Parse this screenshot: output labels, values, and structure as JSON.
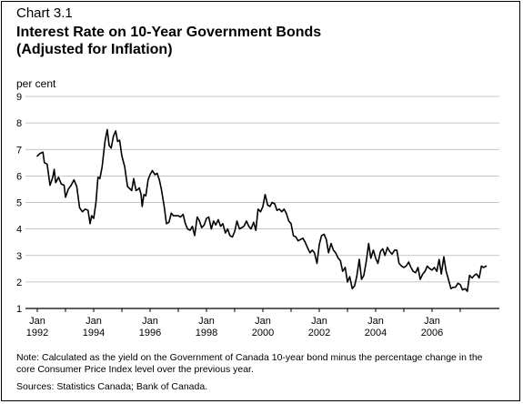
{
  "header": {
    "chart_number": "Chart 3.1",
    "title_line1": "Interest Rate on 10-Year Government Bonds",
    "title_line2": "(Adjusted for Inflation)"
  },
  "unit_label": "per cent",
  "footer": {
    "note": "Note: Calculated as the yield on the Government of Canada 10-year bond minus the percentage change in the core Consumer Price Index level over the previous year.",
    "sources": "Sources: Statistics Canada; Bank of Canada."
  },
  "chart_data": {
    "type": "line",
    "title": "Interest Rate on 10-Year Government Bonds (Adjusted for Inflation)",
    "ylabel": "per cent",
    "ylim": [
      1,
      9
    ],
    "yticks": [
      "1",
      "2",
      "3",
      "4",
      "5",
      "6",
      "7",
      "8",
      "9"
    ],
    "xlim": [
      1992.0,
      2008.0
    ],
    "xticks": [
      {
        "x": 1992,
        "line1": "Jan",
        "line2": "1992"
      },
      {
        "x": 1993,
        "line1": "",
        "line2": ""
      },
      {
        "x": 1994,
        "line1": "Jan",
        "line2": "1994"
      },
      {
        "x": 1995,
        "line1": "",
        "line2": ""
      },
      {
        "x": 1996,
        "line1": "Jan",
        "line2": "1996"
      },
      {
        "x": 1997,
        "line1": "",
        "line2": ""
      },
      {
        "x": 1998,
        "line1": "Jan",
        "line2": "1998"
      },
      {
        "x": 1999,
        "line1": "",
        "line2": ""
      },
      {
        "x": 2000,
        "line1": "Jan",
        "line2": "2000"
      },
      {
        "x": 2001,
        "line1": "",
        "line2": ""
      },
      {
        "x": 2002,
        "line1": "Jan",
        "line2": "2002"
      },
      {
        "x": 2003,
        "line1": "",
        "line2": ""
      },
      {
        "x": 2004,
        "line1": "Jan",
        "line2": "2004"
      },
      {
        "x": 2005,
        "line1": "",
        "line2": ""
      },
      {
        "x": 2006,
        "line1": "Jan",
        "line2": "2006"
      },
      {
        "x": 2007,
        "line1": "",
        "line2": ""
      }
    ],
    "grid": true,
    "series": [
      {
        "color": "#000000",
        "points": [
          [
            1992.0,
            6.75
          ],
          [
            1992.1,
            6.85
          ],
          [
            1992.2,
            6.9
          ],
          [
            1992.25,
            6.5
          ],
          [
            1992.35,
            6.45
          ],
          [
            1992.45,
            5.65
          ],
          [
            1992.55,
            5.95
          ],
          [
            1992.6,
            6.25
          ],
          [
            1992.65,
            5.75
          ],
          [
            1992.75,
            5.95
          ],
          [
            1992.85,
            5.7
          ],
          [
            1992.95,
            5.65
          ],
          [
            1993.0,
            5.2
          ],
          [
            1993.1,
            5.5
          ],
          [
            1993.2,
            5.65
          ],
          [
            1993.3,
            5.85
          ],
          [
            1993.4,
            5.6
          ],
          [
            1993.5,
            4.8
          ],
          [
            1993.6,
            4.65
          ],
          [
            1993.7,
            4.75
          ],
          [
            1993.8,
            4.7
          ],
          [
            1993.87,
            4.2
          ],
          [
            1993.93,
            4.5
          ],
          [
            1994.0,
            4.4
          ],
          [
            1994.08,
            5.0
          ],
          [
            1994.15,
            5.95
          ],
          [
            1994.22,
            5.9
          ],
          [
            1994.3,
            6.35
          ],
          [
            1994.4,
            7.3
          ],
          [
            1994.48,
            7.75
          ],
          [
            1994.55,
            7.15
          ],
          [
            1994.62,
            7.05
          ],
          [
            1994.7,
            7.5
          ],
          [
            1994.78,
            7.7
          ],
          [
            1994.85,
            7.3
          ],
          [
            1994.92,
            7.35
          ],
          [
            1995.0,
            6.75
          ],
          [
            1995.1,
            6.35
          ],
          [
            1995.2,
            5.6
          ],
          [
            1995.3,
            5.5
          ],
          [
            1995.35,
            5.45
          ],
          [
            1995.42,
            5.9
          ],
          [
            1995.5,
            5.45
          ],
          [
            1995.58,
            5.5
          ],
          [
            1995.62,
            5.55
          ],
          [
            1995.68,
            5.3
          ],
          [
            1995.72,
            4.85
          ],
          [
            1995.78,
            5.3
          ],
          [
            1995.85,
            5.25
          ],
          [
            1995.93,
            5.85
          ],
          [
            1996.0,
            6.05
          ],
          [
            1996.08,
            6.2
          ],
          [
            1996.17,
            6.05
          ],
          [
            1996.25,
            6.1
          ],
          [
            1996.33,
            5.85
          ],
          [
            1996.4,
            5.5
          ],
          [
            1996.5,
            4.85
          ],
          [
            1996.58,
            4.2
          ],
          [
            1996.67,
            4.25
          ],
          [
            1996.75,
            4.6
          ],
          [
            1996.83,
            4.5
          ],
          [
            1996.92,
            4.5
          ],
          [
            1997.0,
            4.5
          ],
          [
            1997.08,
            4.45
          ],
          [
            1997.17,
            4.55
          ],
          [
            1997.25,
            4.2
          ],
          [
            1997.33,
            4.0
          ],
          [
            1997.42,
            3.95
          ],
          [
            1997.5,
            4.1
          ],
          [
            1997.58,
            3.75
          ],
          [
            1997.67,
            4.45
          ],
          [
            1997.75,
            4.3
          ],
          [
            1997.83,
            4.05
          ],
          [
            1997.92,
            4.15
          ],
          [
            1998.0,
            4.4
          ],
          [
            1998.08,
            4.45
          ],
          [
            1998.17,
            4.0
          ],
          [
            1998.25,
            4.3
          ],
          [
            1998.33,
            4.15
          ],
          [
            1998.42,
            4.35
          ],
          [
            1998.5,
            4.1
          ],
          [
            1998.58,
            4.2
          ],
          [
            1998.67,
            3.85
          ],
          [
            1998.75,
            4.0
          ],
          [
            1998.83,
            3.75
          ],
          [
            1998.92,
            3.7
          ],
          [
            1999.0,
            3.9
          ],
          [
            1999.08,
            4.3
          ],
          [
            1999.17,
            4.0
          ],
          [
            1999.25,
            4.05
          ],
          [
            1999.33,
            4.1
          ],
          [
            1999.42,
            4.3
          ],
          [
            1999.5,
            4.1
          ],
          [
            1999.58,
            4.0
          ],
          [
            1999.67,
            4.25
          ],
          [
            1999.75,
            3.95
          ],
          [
            1999.83,
            4.75
          ],
          [
            1999.92,
            4.65
          ],
          [
            2000.0,
            4.85
          ],
          [
            2000.08,
            5.3
          ],
          [
            2000.17,
            4.9
          ],
          [
            2000.25,
            4.85
          ],
          [
            2000.33,
            5.0
          ],
          [
            2000.42,
            4.95
          ],
          [
            2000.5,
            4.7
          ],
          [
            2000.58,
            4.75
          ],
          [
            2000.67,
            4.65
          ],
          [
            2000.75,
            4.75
          ],
          [
            2000.83,
            4.6
          ],
          [
            2000.92,
            4.3
          ],
          [
            2001.0,
            4.2
          ],
          [
            2001.08,
            3.75
          ],
          [
            2001.17,
            3.7
          ],
          [
            2001.25,
            3.55
          ],
          [
            2001.33,
            3.6
          ],
          [
            2001.42,
            3.65
          ],
          [
            2001.5,
            3.5
          ],
          [
            2001.58,
            3.3
          ],
          [
            2001.67,
            3.1
          ],
          [
            2001.75,
            3.2
          ],
          [
            2001.83,
            3.1
          ],
          [
            2001.92,
            2.7
          ],
          [
            2002.0,
            3.4
          ],
          [
            2002.08,
            3.75
          ],
          [
            2002.17,
            3.8
          ],
          [
            2002.25,
            3.6
          ],
          [
            2002.33,
            3.1
          ],
          [
            2002.42,
            3.45
          ],
          [
            2002.5,
            3.2
          ],
          [
            2002.58,
            3.1
          ],
          [
            2002.67,
            2.9
          ],
          [
            2002.75,
            2.8
          ],
          [
            2002.83,
            2.4
          ],
          [
            2002.92,
            2.55
          ],
          [
            2003.0,
            2.0
          ],
          [
            2003.08,
            2.2
          ],
          [
            2003.17,
            1.75
          ],
          [
            2003.25,
            1.85
          ],
          [
            2003.33,
            2.2
          ],
          [
            2003.42,
            2.85
          ],
          [
            2003.5,
            2.1
          ],
          [
            2003.58,
            2.25
          ],
          [
            2003.67,
            2.8
          ],
          [
            2003.75,
            3.45
          ],
          [
            2003.83,
            2.9
          ],
          [
            2003.92,
            3.2
          ],
          [
            2004.0,
            2.9
          ],
          [
            2004.08,
            2.7
          ],
          [
            2004.17,
            3.15
          ],
          [
            2004.25,
            3.25
          ],
          [
            2004.33,
            3.0
          ],
          [
            2004.42,
            3.3
          ],
          [
            2004.5,
            3.15
          ],
          [
            2004.58,
            3.05
          ],
          [
            2004.67,
            3.2
          ],
          [
            2004.75,
            3.2
          ],
          [
            2004.83,
            2.7
          ],
          [
            2004.92,
            2.6
          ],
          [
            2005.0,
            2.55
          ],
          [
            2005.08,
            2.6
          ],
          [
            2005.17,
            2.75
          ],
          [
            2005.25,
            2.55
          ],
          [
            2005.33,
            2.4
          ],
          [
            2005.42,
            2.35
          ],
          [
            2005.5,
            2.55
          ],
          [
            2005.58,
            2.1
          ],
          [
            2005.67,
            2.3
          ],
          [
            2005.75,
            2.4
          ],
          [
            2005.83,
            2.6
          ],
          [
            2005.92,
            2.5
          ],
          [
            2006.0,
            2.45
          ],
          [
            2006.08,
            2.55
          ],
          [
            2006.17,
            2.4
          ],
          [
            2006.25,
            2.85
          ],
          [
            2006.33,
            2.3
          ],
          [
            2006.42,
            2.95
          ],
          [
            2006.5,
            2.4
          ],
          [
            2006.58,
            2.1
          ],
          [
            2006.67,
            1.75
          ],
          [
            2006.75,
            1.8
          ],
          [
            2006.83,
            1.8
          ],
          [
            2006.92,
            1.95
          ],
          [
            2007.0,
            1.9
          ],
          [
            2007.08,
            1.7
          ],
          [
            2007.17,
            1.75
          ],
          [
            2007.25,
            1.65
          ],
          [
            2007.33,
            2.25
          ],
          [
            2007.42,
            2.15
          ],
          [
            2007.5,
            2.25
          ],
          [
            2007.58,
            2.3
          ],
          [
            2007.67,
            2.15
          ],
          [
            2007.75,
            2.6
          ],
          [
            2007.83,
            2.55
          ],
          [
            2007.92,
            2.6
          ]
        ]
      }
    ]
  }
}
